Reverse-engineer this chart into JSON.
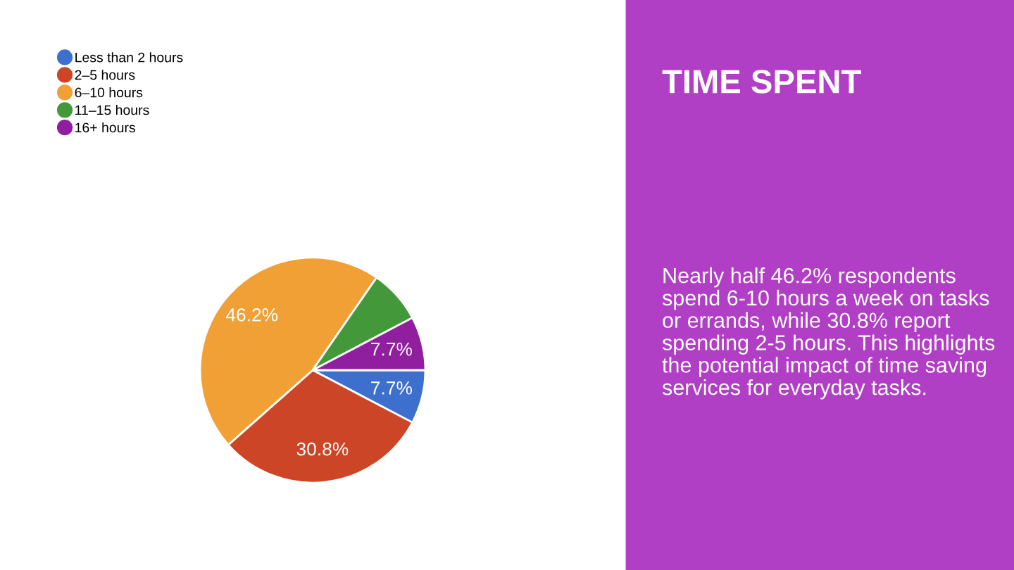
{
  "chart_data": {
    "type": "pie",
    "title": "TIME SPENT",
    "annotations": [
      "Nearly half 46.2% respondents spend 6-10 hours a week on tasks or errands, while 30.8% report spending 2-5 hours. This highlights the potential impact of time saving services for everyday tasks."
    ],
    "categories": [
      "Less than 2 hours",
      "2–5 hours",
      "6–10 hours",
      "11–15 hours",
      "16+ hours"
    ],
    "values": [
      7.7,
      30.8,
      46.2,
      7.7,
      7.7
    ],
    "colors": [
      "#3d6fcc",
      "#cc4527",
      "#f0a035",
      "#43993a",
      "#8f1f9e"
    ],
    "value_labels": [
      "7.7%",
      "30.8%",
      "46.2%",
      null,
      "7.7%"
    ],
    "legend": "top left"
  }
}
